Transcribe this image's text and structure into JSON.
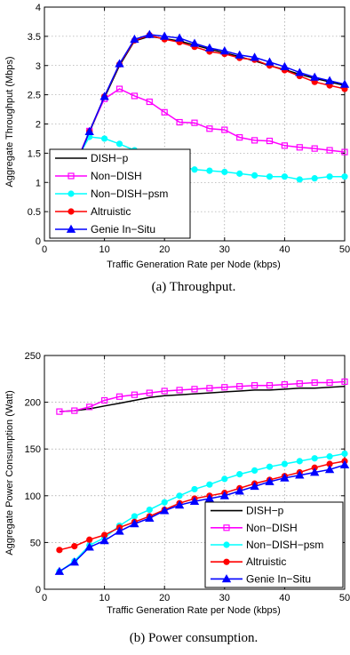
{
  "colors": {
    "DISH-p": "#000000",
    "Non-DISH": "#ff00ff",
    "Non-DISH-psm": "#00ffff",
    "Altruistic": "#ff0000",
    "Genie In-Situ": "#0000ff"
  },
  "chart_data": [
    {
      "type": "line",
      "caption": "(a) Throughput.",
      "xlabel": "Traffic Generation Rate per Node (kbps)",
      "ylabel": "Aggregate Throughput (Mbps)",
      "xlim": [
        0,
        50
      ],
      "ylim": [
        0,
        4
      ],
      "xticks": [
        0,
        10,
        20,
        30,
        40,
        50
      ],
      "yticks": [
        0,
        0.5,
        1,
        1.5,
        2,
        2.5,
        3,
        3.5,
        4
      ],
      "ytick_labels": [
        "0",
        "0.5",
        "1",
        "1.5",
        "2",
        "2.5",
        "3",
        "3.5",
        "4"
      ],
      "grid": true,
      "legend_position": "bottom-left",
      "x": [
        2.5,
        5,
        7.5,
        10,
        12.5,
        15,
        17.5,
        20,
        22.5,
        25,
        27.5,
        30,
        32.5,
        35,
        37.5,
        40,
        42.5,
        45,
        47.5,
        50
      ],
      "series": [
        {
          "name": "DISH-p",
          "marker": "none",
          "values": [
            0.64,
            1.25,
            1.86,
            2.45,
            3.0,
            3.42,
            3.5,
            3.46,
            3.42,
            3.35,
            3.28,
            3.22,
            3.15,
            3.08,
            3.0,
            2.93,
            2.85,
            2.78,
            2.72,
            2.66
          ]
        },
        {
          "name": "Non-DISH",
          "marker": "square",
          "values": [
            0.64,
            1.27,
            1.88,
            2.43,
            2.6,
            2.48,
            2.38,
            2.2,
            2.03,
            2.02,
            1.92,
            1.9,
            1.77,
            1.72,
            1.71,
            1.63,
            1.6,
            1.58,
            1.55,
            1.52
          ]
        },
        {
          "name": "Non-DISH-psm",
          "marker": "circle",
          "values": [
            0.65,
            1.33,
            1.78,
            1.75,
            1.66,
            1.55,
            1.44,
            1.35,
            1.28,
            1.22,
            1.2,
            1.18,
            1.15,
            1.12,
            1.1,
            1.1,
            1.05,
            1.07,
            1.1,
            1.1
          ]
        },
        {
          "name": "Altruistic",
          "marker": "circle",
          "values": [
            0.64,
            1.25,
            1.87,
            2.47,
            3.02,
            3.43,
            3.52,
            3.45,
            3.4,
            3.32,
            3.24,
            3.2,
            3.13,
            3.1,
            3.0,
            2.92,
            2.82,
            2.72,
            2.66,
            2.6
          ]
        },
        {
          "name": "Genie In-Situ",
          "marker": "triangle",
          "values": [
            0.64,
            1.25,
            1.87,
            2.47,
            3.03,
            3.45,
            3.53,
            3.5,
            3.47,
            3.38,
            3.3,
            3.25,
            3.18,
            3.14,
            3.06,
            2.98,
            2.88,
            2.8,
            2.74,
            2.68
          ]
        }
      ]
    },
    {
      "type": "line",
      "caption": "(b) Power consumption.",
      "xlabel": "Traffic Generation Rate per Node (kbps)",
      "ylabel": "Aggregate Power Consumption (Watt)",
      "xlim": [
        0,
        50
      ],
      "ylim": [
        0,
        250
      ],
      "xticks": [
        0,
        10,
        20,
        30,
        40,
        50
      ],
      "yticks": [
        0,
        50,
        100,
        150,
        200,
        250
      ],
      "ytick_labels": [
        "0",
        "50",
        "100",
        "150",
        "200",
        "250"
      ],
      "grid": true,
      "legend_position": "bottom-right",
      "x": [
        2.5,
        5,
        7.5,
        10,
        12.5,
        15,
        17.5,
        20,
        22.5,
        25,
        27.5,
        30,
        32.5,
        35,
        37.5,
        40,
        42.5,
        45,
        47.5,
        50
      ],
      "series": [
        {
          "name": "DISH-p",
          "marker": "none",
          "values": [
            190,
            191,
            193,
            196,
            199,
            202,
            205,
            207,
            208,
            209,
            210,
            211,
            212,
            213,
            213,
            214,
            215,
            215,
            216,
            217
          ]
        },
        {
          "name": "Non-DISH",
          "marker": "square",
          "values": [
            190,
            191,
            195,
            202,
            206,
            208,
            210,
            212,
            213,
            214,
            215,
            216,
            217,
            218,
            218,
            219,
            220,
            221,
            221,
            222
          ]
        },
        {
          "name": "Non-DISH-psm",
          "marker": "circle",
          "values": [
            19,
            30,
            47,
            55,
            68,
            78,
            85,
            93,
            100,
            107,
            112,
            118,
            123,
            127,
            131,
            134,
            137,
            140,
            142,
            145
          ]
        },
        {
          "name": "Altruistic",
          "marker": "circle",
          "values": [
            42,
            46,
            53,
            58,
            66,
            72,
            78,
            85,
            92,
            97,
            100,
            103,
            108,
            113,
            117,
            121,
            125,
            130,
            134,
            137
          ]
        },
        {
          "name": "Genie In-Situ",
          "marker": "triangle",
          "values": [
            19,
            29,
            45,
            52,
            62,
            70,
            76,
            84,
            90,
            94,
            97,
            100,
            105,
            110,
            115,
            119,
            122,
            125,
            128,
            133
          ]
        }
      ]
    }
  ]
}
